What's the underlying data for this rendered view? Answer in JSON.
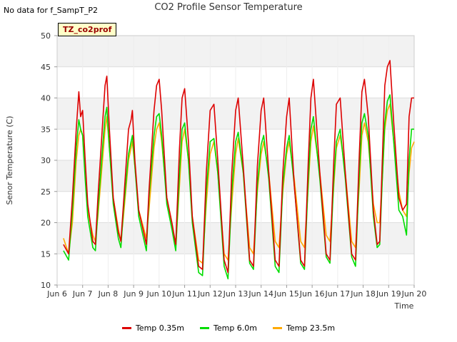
{
  "header": {
    "nodata_text": "No data for f_SampT_P2",
    "badge_text": "TZ_co2prof"
  },
  "chart_data": {
    "type": "line",
    "title": "CO2 Profile Sensor Temperature",
    "xlabel": "Time",
    "ylabel": "Senor Temperature (C)",
    "ylim": [
      10,
      50
    ],
    "yticks": [
      10,
      15,
      20,
      25,
      30,
      35,
      40,
      45,
      50
    ],
    "xlim": [
      6,
      20
    ],
    "xticks": [
      6,
      7,
      8,
      9,
      10,
      11,
      12,
      13,
      14,
      15,
      16,
      17,
      18,
      19,
      20
    ],
    "xtick_labels": [
      "Jun 6",
      "Jun 7",
      "Jun 8",
      "Jun 9",
      "Jun 10",
      "Jun 11",
      "Jun 12",
      "Jun 13",
      "Jun 14",
      "Jun 15",
      "Jun 16",
      "Jun 17",
      "Jun 18",
      "Jun 19",
      "Jun 20"
    ],
    "grid": true,
    "legend_position": "bottom-center",
    "series": [
      {
        "name": "Temp 0.35m",
        "color": "#dd0000",
        "x": [
          6.25,
          6.45,
          6.6,
          6.75,
          6.85,
          6.92,
          7.0,
          7.1,
          7.2,
          7.4,
          7.5,
          7.6,
          7.8,
          7.88,
          7.95,
          8.05,
          8.2,
          8.4,
          8.5,
          8.6,
          8.8,
          8.9,
          8.95,
          9.05,
          9.2,
          9.5,
          9.6,
          9.8,
          9.9,
          10.0,
          10.1,
          10.3,
          10.5,
          10.65,
          10.8,
          10.9,
          11.0,
          11.15,
          11.3,
          11.55,
          11.7,
          11.85,
          12.0,
          12.15,
          12.3,
          12.55,
          12.7,
          12.85,
          13.0,
          13.1,
          13.3,
          13.55,
          13.7,
          13.85,
          14.0,
          14.1,
          14.3,
          14.55,
          14.7,
          14.85,
          15.0,
          15.1,
          15.3,
          15.55,
          15.7,
          15.85,
          15.95,
          16.05,
          16.3,
          16.55,
          16.7,
          16.85,
          16.95,
          17.1,
          17.3,
          17.55,
          17.7,
          17.85,
          17.95,
          18.05,
          18.2,
          18.4,
          18.55,
          18.65,
          18.75,
          18.85,
          18.95,
          19.05,
          19.2,
          19.4,
          19.55,
          19.7,
          19.8,
          19.9,
          20.0
        ],
        "y": [
          16.5,
          15,
          24,
          35,
          41,
          37,
          38,
          30,
          23,
          17,
          16.5,
          24,
          37,
          42,
          43.5,
          35,
          24,
          18.5,
          17,
          23,
          35,
          36.5,
          38,
          30,
          22,
          16.5,
          25,
          38,
          42,
          43,
          38,
          24,
          20,
          16.5,
          32,
          40,
          41.5,
          33,
          21,
          13,
          12.5,
          28,
          38,
          39,
          30,
          14,
          12,
          28,
          38,
          40,
          29,
          14,
          13,
          29,
          38,
          40,
          28,
          14,
          13,
          28,
          37,
          40,
          26,
          14,
          13,
          30,
          40,
          43,
          28,
          15,
          14,
          30,
          39,
          40,
          28,
          15,
          14,
          31,
          41,
          43,
          37,
          22,
          16.5,
          17,
          30,
          42,
          45,
          46,
          36,
          24,
          22,
          23,
          37,
          40,
          40
        ]
      },
      {
        "name": "Temp 6.0m",
        "color": "#00dd00",
        "x": [
          6.25,
          6.45,
          6.6,
          6.75,
          6.85,
          6.92,
          7.0,
          7.1,
          7.2,
          7.4,
          7.5,
          7.6,
          7.8,
          7.88,
          7.95,
          8.05,
          8.2,
          8.4,
          8.5,
          8.6,
          8.8,
          8.9,
          8.95,
          9.05,
          9.2,
          9.5,
          9.6,
          9.8,
          9.9,
          10.0,
          10.1,
          10.3,
          10.5,
          10.65,
          10.8,
          10.9,
          11.0,
          11.15,
          11.3,
          11.55,
          11.7,
          11.85,
          12.0,
          12.15,
          12.3,
          12.55,
          12.7,
          12.85,
          13.0,
          13.1,
          13.3,
          13.55,
          13.7,
          13.85,
          14.0,
          14.1,
          14.3,
          14.55,
          14.7,
          14.85,
          15.0,
          15.1,
          15.3,
          15.55,
          15.7,
          15.85,
          15.95,
          16.05,
          16.3,
          16.55,
          16.7,
          16.85,
          16.95,
          17.1,
          17.3,
          17.55,
          17.7,
          17.85,
          17.95,
          18.05,
          18.2,
          18.4,
          18.55,
          18.65,
          18.75,
          18.85,
          18.95,
          19.05,
          19.2,
          19.4,
          19.55,
          19.7,
          19.8,
          19.9,
          20.0
        ],
        "y": [
          15.5,
          14,
          22,
          32,
          36.5,
          35,
          34,
          27,
          21,
          16,
          15.5,
          22,
          33,
          37,
          38.5,
          32,
          23,
          17.5,
          16,
          22,
          31,
          33,
          34,
          29,
          21,
          15.5,
          24,
          34,
          37,
          37.5,
          34,
          23,
          19,
          15.5,
          28,
          35,
          36,
          30,
          20,
          12,
          11.5,
          25,
          33,
          33.5,
          28,
          13,
          11,
          25,
          33,
          34.5,
          28,
          13.5,
          12.5,
          26,
          32.5,
          34,
          27,
          13,
          12,
          26,
          32,
          34,
          26,
          13.5,
          12.5,
          27,
          35,
          37,
          27,
          14.5,
          13.5,
          27,
          33,
          35,
          27,
          14.5,
          13,
          28,
          36,
          37.5,
          34,
          21,
          16,
          16.5,
          27,
          36,
          39.5,
          40.5,
          33,
          22,
          21,
          18,
          30,
          35,
          35
        ]
      },
      {
        "name": "Temp 23.5m",
        "color": "#ffaa00",
        "x": [
          6.25,
          6.45,
          6.6,
          6.75,
          6.85,
          6.92,
          7.0,
          7.1,
          7.2,
          7.4,
          7.5,
          7.6,
          7.8,
          7.88,
          7.95,
          8.05,
          8.2,
          8.4,
          8.5,
          8.6,
          8.8,
          8.9,
          8.95,
          9.05,
          9.2,
          9.5,
          9.6,
          9.8,
          9.9,
          10.0,
          10.1,
          10.3,
          10.5,
          10.65,
          10.8,
          10.9,
          11.0,
          11.15,
          11.3,
          11.55,
          11.7,
          11.85,
          12.0,
          12.15,
          12.3,
          12.55,
          12.7,
          12.85,
          13.0,
          13.1,
          13.3,
          13.55,
          13.7,
          13.85,
          14.0,
          14.1,
          14.3,
          14.55,
          14.7,
          14.85,
          15.0,
          15.1,
          15.3,
          15.55,
          15.7,
          15.85,
          15.95,
          16.05,
          16.3,
          16.55,
          16.7,
          16.85,
          16.95,
          17.1,
          17.3,
          17.55,
          17.7,
          17.85,
          17.95,
          18.05,
          18.2,
          18.4,
          18.55,
          18.65,
          18.75,
          18.85,
          18.95,
          19.05,
          19.2,
          19.4,
          19.55,
          19.7,
          19.8,
          19.9,
          20.0
        ],
        "y": [
          17.5,
          15,
          20,
          30,
          34,
          35,
          34,
          28,
          22,
          18,
          17,
          21,
          31,
          35,
          37,
          32,
          24,
          19,
          17,
          21,
          30,
          32,
          33,
          29,
          22,
          17.5,
          22,
          32,
          35,
          36,
          33,
          24,
          20,
          16,
          26,
          33,
          35,
          30,
          21,
          14,
          13.5,
          23,
          31,
          33,
          28,
          15,
          14,
          23,
          31,
          33.5,
          28,
          16,
          15,
          25,
          31,
          33,
          28,
          17,
          16,
          25,
          31,
          33,
          27,
          17,
          16,
          26,
          33,
          35.5,
          28,
          18,
          17,
          26,
          32,
          34,
          28,
          17,
          16,
          26,
          34,
          36,
          33,
          23,
          20,
          20,
          27,
          35,
          38,
          39,
          33,
          25,
          22,
          21,
          28,
          32,
          33
        ]
      }
    ]
  }
}
